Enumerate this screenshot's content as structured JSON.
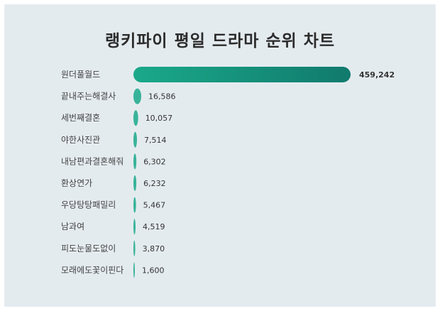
{
  "chart_data": {
    "type": "bar",
    "orientation": "horizontal",
    "title": "랭키파이 평일 드라마 순위 차트",
    "categories": [
      "원더풀월드",
      "끝내주는해결사",
      "세번째결혼",
      "야한사진관",
      "내남편과결혼해줘",
      "환상연가",
      "우당탕탕패밀리",
      "남과여",
      "피도눈물도없이",
      "모래에도꽃이핀다"
    ],
    "values": [
      459242,
      16586,
      10057,
      7514,
      6302,
      6232,
      5467,
      4519,
      3870,
      1600
    ],
    "value_labels": [
      "459,242",
      "16,586",
      "10,057",
      "7,514",
      "6,302",
      "6,232",
      "5,467",
      "4,519",
      "3,870",
      "1,600"
    ],
    "colors": {
      "bar_start": "#1aa98a",
      "bar_end": "#117a6d",
      "background": "#e4ebef"
    },
    "grid": false,
    "legend": "none"
  }
}
